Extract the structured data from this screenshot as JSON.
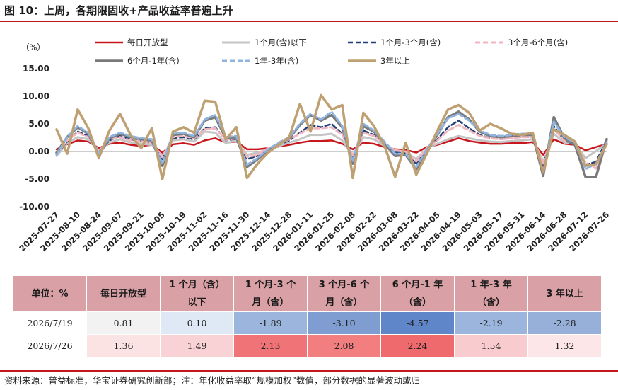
{
  "figure": {
    "title": "图 10：上周，各期限固收+产品收益率普遍上升"
  },
  "chart_data": {
    "type": "line",
    "ylabel": "（%）",
    "ylim": [
      -10,
      15
    ],
    "yticks": [
      "15.00",
      "10.00",
      "5.00",
      "0.00",
      "-5.00",
      "-10.00"
    ],
    "ytick_values": [
      15,
      10,
      5,
      0,
      -5,
      -10
    ],
    "xtick_labels": [
      "2025-07-27",
      "2025-08-10",
      "2025-08-24",
      "2025-09-07",
      "2025-09-21",
      "2025-10-05",
      "2025-10-19",
      "2025-11-02",
      "2025-11-16",
      "2025-11-30",
      "2025-12-14",
      "2025-12-28",
      "2026-01-11",
      "2026-01-25",
      "2026-02-08",
      "2026-02-22",
      "2026-03-08",
      "2026-03-22",
      "2026-04-05",
      "2026-04-19",
      "2026-05-03",
      "2026-05-17",
      "2026-05-31",
      "2026-06-14",
      "2026-06-28",
      "2026-07-12",
      "2026-07-26"
    ],
    "x_weeks": [
      "2025-07-27",
      "2025-08-03",
      "2025-08-10",
      "2025-08-17",
      "2025-08-24",
      "2025-08-31",
      "2025-09-07",
      "2025-09-14",
      "2025-09-21",
      "2025-09-28",
      "2025-10-05",
      "2025-10-12",
      "2025-10-19",
      "2025-10-26",
      "2025-11-02",
      "2025-11-09",
      "2025-11-16",
      "2025-11-23",
      "2025-11-30",
      "2025-12-07",
      "2025-12-14",
      "2025-12-21",
      "2025-12-28",
      "2026-01-04",
      "2026-01-11",
      "2026-01-18",
      "2026-01-25",
      "2026-02-01",
      "2026-02-08",
      "2026-02-15",
      "2026-02-22",
      "2026-03-01",
      "2026-03-08",
      "2026-03-15",
      "2026-03-22",
      "2026-03-29",
      "2026-04-05",
      "2026-04-12",
      "2026-04-19",
      "2026-04-26",
      "2026-05-03",
      "2026-05-10",
      "2026-05-17",
      "2026-05-24",
      "2026-05-31",
      "2026-06-07",
      "2026-06-14",
      "2026-06-21",
      "2026-06-28",
      "2026-07-05",
      "2026-07-12",
      "2026-07-19",
      "2026-07-26"
    ],
    "legend_position": "top",
    "grid": false,
    "series": [
      {
        "name": "每日开放型",
        "color": "#c8161d",
        "width": 2.5,
        "dash": "",
        "values": [
          0.4,
          1.3,
          2.0,
          1.8,
          0.6,
          1.4,
          1.6,
          1.2,
          1.0,
          1.2,
          -0.2,
          1.3,
          1.5,
          1.2,
          2.0,
          2.4,
          1.6,
          1.8,
          0.4,
          0.4,
          0.6,
          0.9,
          1.2,
          1.6,
          1.9,
          1.9,
          2.0,
          1.4,
          0.4,
          1.6,
          1.4,
          0.8,
          0.4,
          0.3,
          -0.2,
          0.8,
          1.2,
          1.8,
          2.4,
          1.9,
          1.6,
          1.4,
          1.4,
          1.5,
          1.5,
          1.7,
          -0.6,
          2.2,
          1.4,
          1.2,
          0.2,
          0.81,
          1.36
        ]
      },
      {
        "name": "1个月(含)以下",
        "color": "#c4c4c4",
        "width": 3,
        "dash": "",
        "values": [
          -0.8,
          1.5,
          2.6,
          2.2,
          0.2,
          1.6,
          2.2,
          1.6,
          1.4,
          1.2,
          -0.8,
          2.0,
          2.2,
          1.8,
          3.6,
          3.4,
          1.5,
          2.0,
          -0.6,
          -0.2,
          0.4,
          1.0,
          1.6,
          2.2,
          3.0,
          3.0,
          3.2,
          2.0,
          -0.6,
          2.6,
          2.2,
          1.0,
          0.2,
          -0.1,
          -1.4,
          0.6,
          1.4,
          2.2,
          2.8,
          2.4,
          2.0,
          1.8,
          1.7,
          1.9,
          2.0,
          2.2,
          -1.8,
          3.2,
          1.6,
          1.4,
          -1.2,
          0.1,
          1.49
        ]
      },
      {
        "name": "1个月-3个月(含)",
        "color": "#1f3f78",
        "width": 2.5,
        "dash": "7,4",
        "values": [
          -0.5,
          1.8,
          3.6,
          2.8,
          -0.1,
          2.0,
          2.8,
          2.2,
          1.8,
          1.6,
          -1.4,
          2.4,
          2.6,
          2.2,
          4.2,
          4.4,
          2.0,
          2.3,
          -1.4,
          -0.8,
          0.3,
          1.2,
          2.0,
          3.4,
          4.8,
          4.4,
          5.0,
          3.2,
          -1.2,
          3.8,
          3.0,
          1.2,
          -0.2,
          -0.3,
          -2.2,
          0.3,
          2.2,
          4.4,
          5.6,
          4.2,
          3.0,
          2.4,
          2.2,
          2.4,
          2.6,
          2.6,
          -2.6,
          4.6,
          2.0,
          1.2,
          -2.4,
          -1.89,
          2.13
        ]
      },
      {
        "name": "3个月-6个月(含)",
        "color": "#f2b6c0",
        "width": 3,
        "dash": "7,4",
        "values": [
          -0.4,
          2.0,
          3.4,
          2.6,
          0.0,
          2.2,
          2.6,
          2.0,
          1.8,
          1.6,
          -1.0,
          2.6,
          2.8,
          2.4,
          4.0,
          4.2,
          2.1,
          2.4,
          -1.0,
          -0.6,
          0.6,
          1.3,
          2.2,
          3.2,
          4.2,
          4.2,
          4.4,
          3.0,
          -0.8,
          3.4,
          2.8,
          1.4,
          0.2,
          0.0,
          -1.8,
          0.6,
          2.0,
          3.8,
          4.8,
          3.8,
          2.8,
          2.4,
          2.2,
          2.4,
          2.6,
          2.6,
          -2.2,
          4.0,
          2.0,
          1.4,
          -2.0,
          -3.1,
          2.08
        ]
      },
      {
        "name": "6个月-1年(含)",
        "color": "#7a7a7a",
        "width": 3.5,
        "dash": "",
        "values": [
          -0.2,
          2.6,
          4.4,
          3.2,
          -0.6,
          2.4,
          3.2,
          2.6,
          2.2,
          2.0,
          -2.6,
          3.0,
          3.2,
          2.6,
          5.6,
          6.2,
          2.4,
          2.6,
          -2.8,
          -1.4,
          0.2,
          1.4,
          2.4,
          4.8,
          6.6,
          5.6,
          6.6,
          4.4,
          -2.2,
          4.6,
          3.6,
          1.4,
          -0.8,
          -0.6,
          -3.2,
          0.2,
          3.0,
          6.2,
          7.2,
          5.8,
          3.6,
          2.8,
          2.6,
          2.8,
          3.0,
          3.0,
          -4.4,
          6.2,
          2.4,
          1.2,
          -4.6,
          -4.57,
          2.24
        ]
      },
      {
        "name": "1年-3年(含)",
        "color": "#8fb4e0",
        "width": 3,
        "dash": "7,4",
        "values": [
          -0.6,
          2.6,
          4.6,
          3.4,
          -0.4,
          2.6,
          3.4,
          2.8,
          2.4,
          2.2,
          -2.2,
          3.2,
          3.4,
          2.8,
          5.8,
          6.6,
          2.6,
          2.8,
          -2.4,
          -1.2,
          0.4,
          1.6,
          2.6,
          5.0,
          6.8,
          5.8,
          7.2,
          4.6,
          -1.8,
          5.0,
          3.8,
          1.8,
          -0.4,
          -0.4,
          -2.8,
          0.4,
          3.2,
          6.0,
          6.8,
          5.6,
          3.8,
          3.0,
          2.8,
          3.0,
          3.2,
          3.2,
          -3.8,
          5.4,
          2.6,
          1.6,
          -3.2,
          -2.19,
          1.54
        ]
      },
      {
        "name": "3年以上",
        "color": "#bfa072",
        "width": 3.5,
        "dash": "",
        "values": [
          4.0,
          -0.4,
          7.6,
          4.2,
          -1.2,
          3.8,
          6.8,
          3.0,
          0.6,
          4.2,
          -5.0,
          3.6,
          4.4,
          3.4,
          9.2,
          9.0,
          2.2,
          4.4,
          -4.8,
          -2.2,
          -0.2,
          1.2,
          2.6,
          8.6,
          3.6,
          10.2,
          7.6,
          8.4,
          -4.8,
          7.0,
          4.6,
          1.0,
          -4.6,
          1.6,
          -4.2,
          -0.4,
          3.8,
          7.6,
          8.4,
          7.0,
          3.8,
          5.0,
          4.2,
          3.2,
          3.0,
          3.4,
          -3.8,
          4.0,
          3.0,
          1.8,
          -2.6,
          -2.28,
          1.32
        ]
      }
    ]
  },
  "table": {
    "headers": [
      {
        "line1": "单位：%",
        "line2": ""
      },
      {
        "line1": "每日开放型",
        "line2": ""
      },
      {
        "line1": "1 个月（含）",
        "line2": "以下"
      },
      {
        "line1": "1 个月-3 个",
        "line2": "月（含）"
      },
      {
        "line1": "3 个月-6 个",
        "line2": "月（含）"
      },
      {
        "line1": "6 个月-1 年",
        "line2": "（含）"
      },
      {
        "line1": "1 年-3 年",
        "line2": "（含）"
      },
      {
        "line1": "3 年以上",
        "line2": ""
      }
    ],
    "rows": [
      {
        "date": "2026/7/19",
        "cells": [
          {
            "value": "0.81",
            "bg": "#f2f2f2"
          },
          {
            "value": "0.10",
            "bg": "#dfe8f5"
          },
          {
            "value": "-1.89",
            "bg": "#9cb5dc"
          },
          {
            "value": "-3.10",
            "bg": "#7f9dd0"
          },
          {
            "value": "-4.57",
            "bg": "#5e86c8"
          },
          {
            "value": "-2.19",
            "bg": "#9cb5dc"
          },
          {
            "value": "-2.28",
            "bg": "#96b0da"
          }
        ]
      },
      {
        "date": "2026/7/26",
        "cells": [
          {
            "value": "1.36",
            "bg": "#fbe3e4"
          },
          {
            "value": "1.49",
            "bg": "#f8d2d4"
          },
          {
            "value": "2.13",
            "bg": "#f07477"
          },
          {
            "value": "2.08",
            "bg": "#f27e80"
          },
          {
            "value": "2.24",
            "bg": "#ee6a6d"
          },
          {
            "value": "1.54",
            "bg": "#f8cbce"
          },
          {
            "value": "1.32",
            "bg": "#fde6e7"
          }
        ]
      }
    ]
  },
  "footnote": "资料来源：普益标准，华宝证券研究创新部；注：年化收益率取“规模加权”数值，部分数据的显著波动或归"
}
